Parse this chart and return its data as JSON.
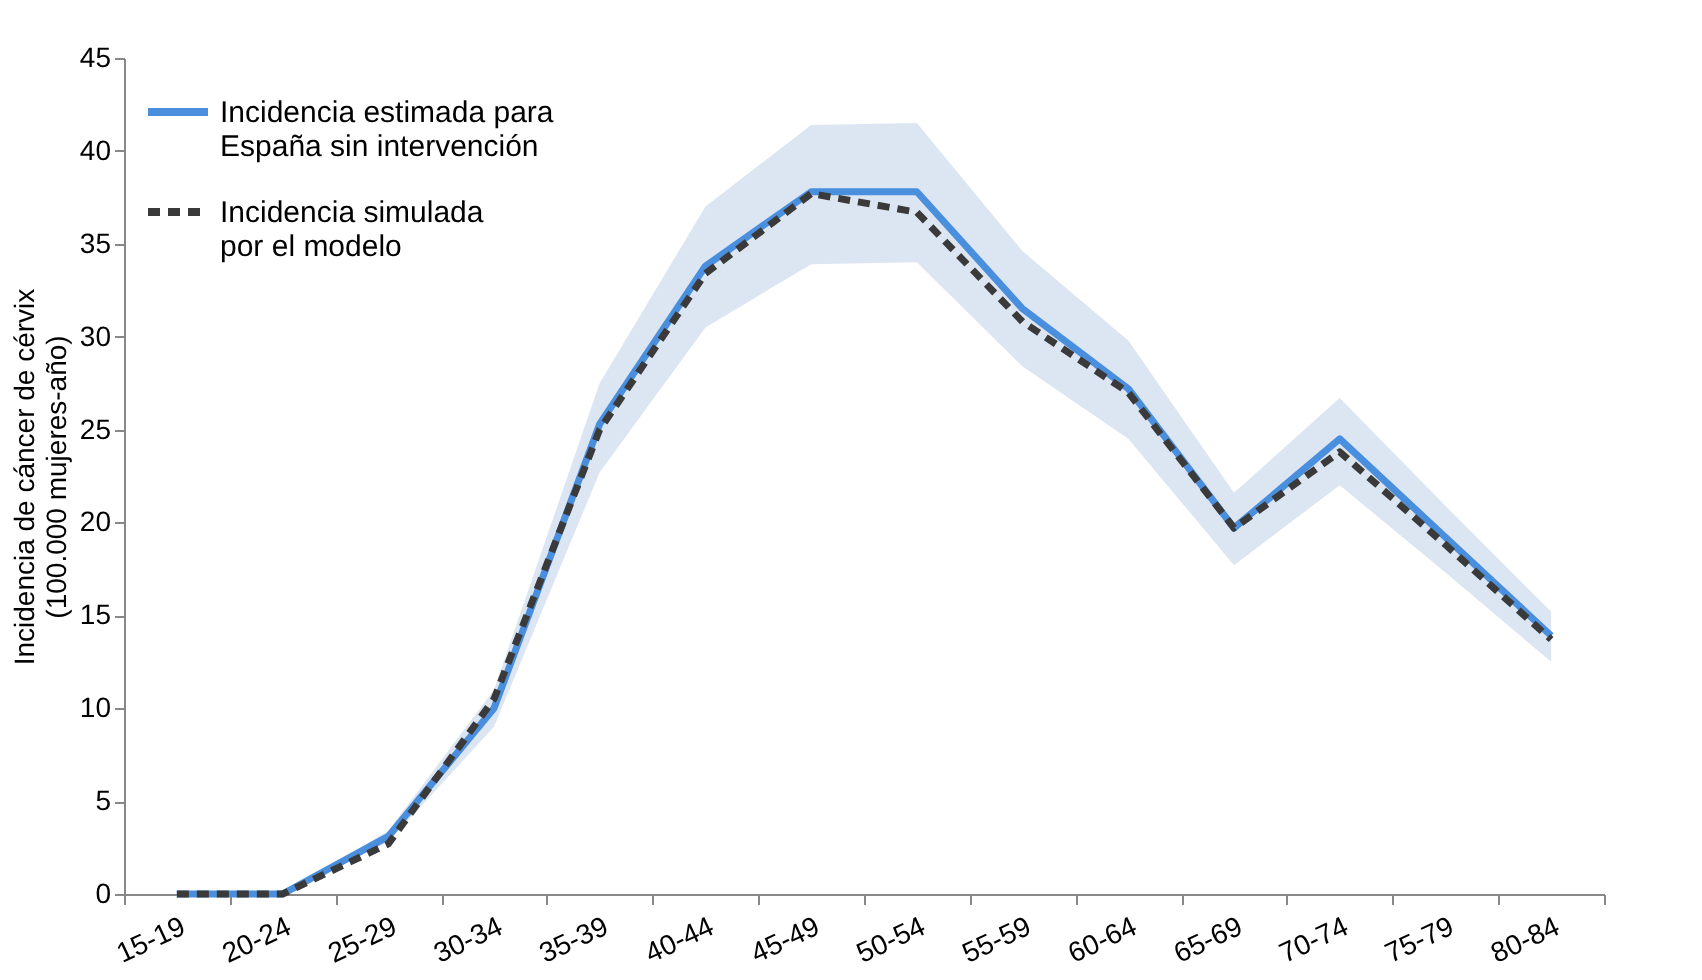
{
  "chart_data": {
    "type": "line",
    "ylabel": "Incidencia de cáncer de cérvix\n(100.000 mujeres-año)",
    "categories": [
      "15-19",
      "20-24",
      "25-29",
      "30-34",
      "35-39",
      "40-44",
      "45-49",
      "50-54",
      "55-59",
      "60-64",
      "65-69",
      "70-74",
      "75-79",
      "80-84"
    ],
    "series": [
      {
        "name": "Incidencia estimada para España sin intervención",
        "color": "#4a8ede",
        "line_style": "solid",
        "values": [
          0,
          0,
          3.1,
          10,
          25.3,
          33.8,
          37.8,
          37.8,
          31.5,
          27.2,
          19.7,
          24.5,
          19.2,
          13.9
        ],
        "lower": [
          0,
          0,
          2.8,
          9,
          22.7,
          30.5,
          33.9,
          34,
          28.4,
          24.5,
          17.7,
          22,
          17.3,
          12.5
        ],
        "upper": [
          0,
          0,
          3.4,
          11,
          27.5,
          37,
          41.4,
          41.5,
          34.6,
          29.8,
          21.6,
          26.7,
          20.9,
          15.2
        ]
      },
      {
        "name": "Incidencia simulada por el modelo",
        "color": "#3a3a3a",
        "line_style": "dashed",
        "values": [
          0,
          0,
          2.7,
          10.5,
          25,
          33.4,
          37.7,
          36.7,
          30.8,
          27,
          19.7,
          23.8,
          18.8,
          13.7
        ]
      }
    ],
    "ylim": [
      0,
      45
    ],
    "yticks": [
      0,
      5,
      10,
      15,
      20,
      25,
      30,
      35,
      40,
      45
    ],
    "grid": false,
    "legend": "top left",
    "marker": "none"
  }
}
